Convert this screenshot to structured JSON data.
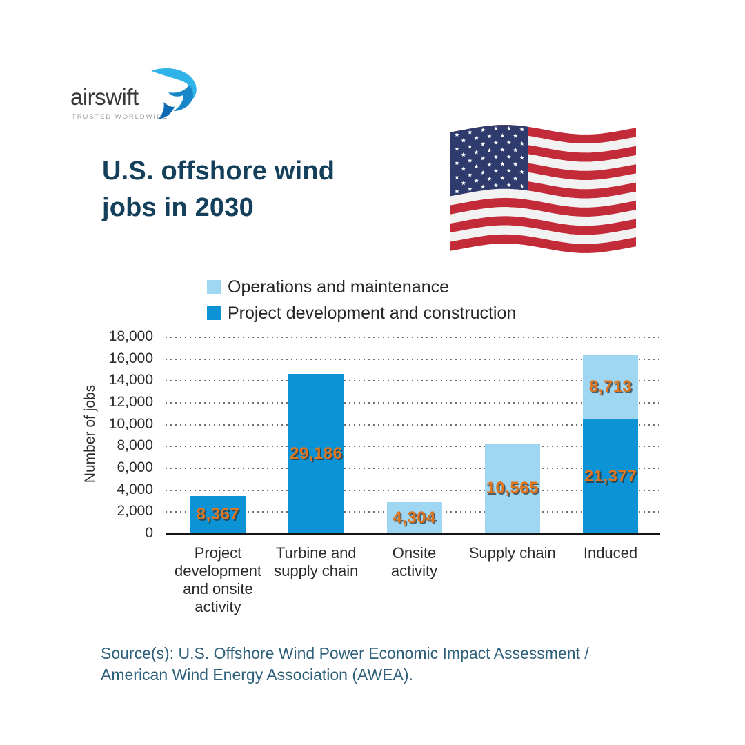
{
  "logo": {
    "brand": "airswift",
    "tagline": "TRUSTED WORLDWIDE"
  },
  "title": {
    "line1": "U.S. offshore wind",
    "line2": "jobs in 2030"
  },
  "source": {
    "line1": "Source(s): U.S. Offshore Wind Power Economic Impact Assessment /",
    "line2": "American Wind Energy Association (AWEA)."
  },
  "colors": {
    "title_navy": "#15405c",
    "source_teal": "#2e607b",
    "dark_blue_series": "#0c93d6",
    "light_blue_series": "#9fd7f2",
    "value_label_orange": "#e0751e",
    "axis_black": "#141414",
    "gridline_gray": "#6f6f6f",
    "flag_red": "#c32b39",
    "flag_blue": "#2f3a6d",
    "flag_white": "#f2f2f2"
  },
  "chart_data": {
    "type": "bar",
    "stacked": true,
    "title": "U.S. offshore wind jobs in 2030",
    "xlabel": "",
    "ylabel": "Number of jobs",
    "ylim": [
      0,
      18000
    ],
    "ytick_values": [
      0,
      2000,
      4000,
      6000,
      8000,
      10000,
      12000,
      14000,
      16000,
      18000
    ],
    "ytick_labels": [
      "0",
      "2,000",
      "4,000",
      "6,000",
      "8,000",
      "10,000",
      "12,000",
      "14,000",
      "16,000",
      "18,000"
    ],
    "grid": "horizontal-dotted",
    "legend_position": "top",
    "categories": [
      "Project development and onsite activity",
      "Turbine and supply chain",
      "Onsite activity",
      "Supply chain",
      "Induced"
    ],
    "series": [
      {
        "name": "Operations and maintenance",
        "color": "#9fd7f2",
        "values": [
          0,
          0,
          4304,
          10565,
          8713
        ]
      },
      {
        "name": "Project development and construction",
        "color": "#0c93d6",
        "values": [
          8367,
          29186,
          0,
          0,
          21377
        ]
      }
    ],
    "value_label_color": "#e0751e",
    "bars": [
      {
        "category_lines": "Project\ndevelopment\nand onsite\nactivity",
        "segments": [
          {
            "series": "Project development and construction",
            "value": 8367,
            "label": "8,367",
            "color": "#0c93d6",
            "drawn_value": 3500
          }
        ]
      },
      {
        "category_lines": "Turbine and\nsupply chain",
        "segments": [
          {
            "series": "Project development and construction",
            "value": 29186,
            "label": "29,186",
            "color": "#0c93d6",
            "drawn_value": 14650
          }
        ]
      },
      {
        "category_lines": "Onsite\nactivity",
        "segments": [
          {
            "series": "Operations and maintenance",
            "value": 4304,
            "label": "4,304",
            "color": "#9fd7f2",
            "drawn_value": 2900
          }
        ]
      },
      {
        "category_lines": "Supply chain",
        "segments": [
          {
            "series": "Operations and maintenance",
            "value": 10565,
            "label": "10,565",
            "color": "#9fd7f2",
            "drawn_value": 8300
          }
        ]
      },
      {
        "category_lines": "Induced",
        "segments": [
          {
            "series": "Project development and construction",
            "value": 21377,
            "label": "21,377",
            "color": "#0c93d6",
            "drawn_value": 10500
          },
          {
            "series": "Operations and maintenance",
            "value": 8713,
            "label": "8,713",
            "color": "#9fd7f2",
            "drawn_value": 5900
          }
        ]
      }
    ]
  }
}
